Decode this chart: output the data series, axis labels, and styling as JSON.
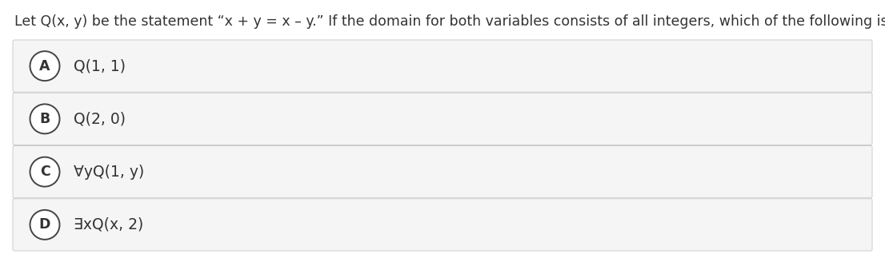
{
  "title": "Let Q(x, y) be the statement “x + y = x – y.” If the domain for both variables consists of all integers, which of the following is true?",
  "background_color": "#ffffff",
  "option_bg_color": "#f5f5f5",
  "option_border_color": "#cccccc",
  "circle_fill_color": "#ffffff",
  "circle_edge_color": "#444444",
  "text_color": "#333333",
  "options": [
    {
      "label": "A",
      "text": "Q(1, 1)"
    },
    {
      "label": "B",
      "text": "Q(2, 0)"
    },
    {
      "label": "C",
      "text": "∀yQ(1, y)"
    },
    {
      "label": "D",
      "text": "∃xQ(x, 2)"
    }
  ],
  "title_fontsize": 12.5,
  "option_fontsize": 13.5,
  "label_fontsize": 12.5,
  "fig_width": 11.06,
  "fig_height": 3.18,
  "dpi": 100
}
